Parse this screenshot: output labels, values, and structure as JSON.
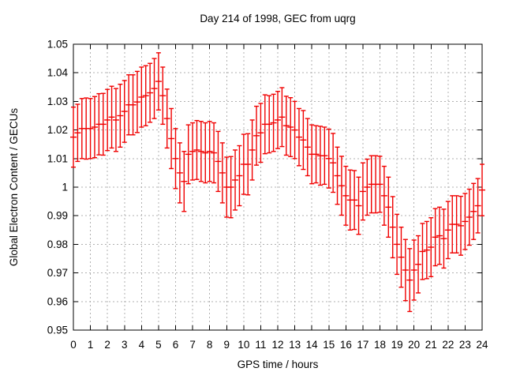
{
  "page": {
    "background": "#ffffff"
  },
  "chart_data": {
    "type": "scatter",
    "style": "yerrorbars",
    "title": "Day 214 of 1998, GEC from uqrg",
    "xlabel": "GPS time / hours",
    "ylabel": "Global Electron Content / GECUs",
    "xlim": [
      0,
      24
    ],
    "ylim": [
      0.95,
      1.05
    ],
    "x_start": 0,
    "x_step": 0.25,
    "grid": true,
    "legend": "none",
    "series_color": "#f00000",
    "grid_color": "#b0b0b0",
    "border_color": "#000000",
    "xticks": [
      "0",
      "1",
      "2",
      "3",
      "4",
      "5",
      "6",
      "7",
      "8",
      "9",
      "10",
      "11",
      "12",
      "13",
      "14",
      "15",
      "16",
      "17",
      "18",
      "19",
      "20",
      "21",
      "22",
      "23",
      "24"
    ],
    "yticks": [
      "0.95",
      "0.96",
      "0.97",
      "0.98",
      "0.99",
      "1",
      "1.01",
      "1.02",
      "1.03",
      "1.04",
      "1.05"
    ],
    "values": [
      1.0175,
      1.019,
      1.0205,
      1.0205,
      1.0205,
      1.021,
      1.022,
      1.022,
      1.0235,
      1.0245,
      1.0235,
      1.025,
      1.0265,
      1.0288,
      1.0288,
      1.0298,
      1.0315,
      1.032,
      1.033,
      1.0345,
      1.037,
      1.032,
      1.024,
      1.017,
      1.01,
      1.005,
      1.002,
      1.0115,
      1.0125,
      1.013,
      1.0125,
      1.012,
      1.0125,
      1.012,
      1.009,
      1.005,
      1.0,
      1.0,
      1.0025,
      1.004,
      1.008,
      1.008,
      1.013,
      1.018,
      1.019,
      1.022,
      1.022,
      1.0225,
      1.0235,
      1.0245,
      1.0215,
      1.021,
      1.02,
      1.0175,
      1.0165,
      1.014,
      1.0115,
      1.0115,
      1.011,
      1.011,
      1.01,
      1.0085,
      1.004,
      1.0005,
      0.997,
      0.9955,
      0.9955,
      0.9935,
      0.9985,
      1.0,
      1.001,
      1.001,
      1.001,
      0.997,
      0.993,
      0.986,
      0.98,
      0.9755,
      0.971,
      0.9675,
      0.971,
      0.973,
      0.9775,
      0.978,
      0.979,
      0.9825,
      0.983,
      0.982,
      0.985,
      0.987,
      0.987,
      0.9865,
      0.988,
      0.9895,
      0.9915,
      0.9935,
      0.999
    ],
    "errors": [
      0.0105,
      0.01,
      0.0105,
      0.0107,
      0.0105,
      0.0107,
      0.0107,
      0.0108,
      0.0107,
      0.0108,
      0.011,
      0.011,
      0.0108,
      0.0105,
      0.0105,
      0.0107,
      0.0105,
      0.0105,
      0.0103,
      0.0105,
      0.01,
      0.01,
      0.0103,
      0.0105,
      0.0105,
      0.0105,
      0.0105,
      0.0103,
      0.01,
      0.0103,
      0.0105,
      0.0105,
      0.0105,
      0.0105,
      0.0105,
      0.0105,
      0.0105,
      0.0107,
      0.0105,
      0.0105,
      0.0105,
      0.0107,
      0.0105,
      0.0103,
      0.0103,
      0.0103,
      0.01,
      0.01,
      0.01,
      0.0103,
      0.0103,
      0.0103,
      0.01,
      0.01,
      0.0103,
      0.01,
      0.0103,
      0.01,
      0.0103,
      0.01,
      0.0103,
      0.0103,
      0.01,
      0.0103,
      0.0103,
      0.0105,
      0.0103,
      0.01,
      0.01,
      0.0098,
      0.01,
      0.01,
      0.0098,
      0.0103,
      0.0105,
      0.0107,
      0.0105,
      0.0105,
      0.0107,
      0.011,
      0.0105,
      0.01,
      0.0098,
      0.01,
      0.0103,
      0.01,
      0.01,
      0.0103,
      0.01,
      0.01,
      0.01,
      0.0103,
      0.0098,
      0.0098,
      0.0098,
      0.0095,
      0.009
    ]
  }
}
